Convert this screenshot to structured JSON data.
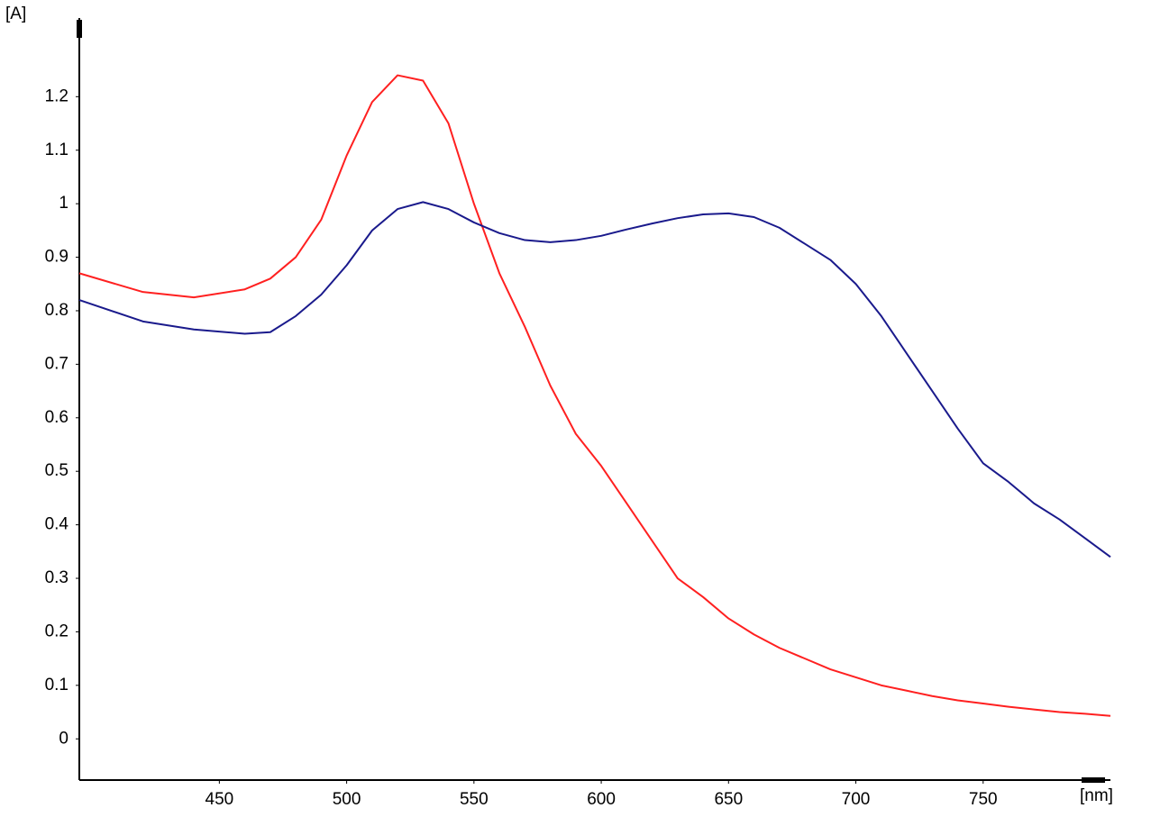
{
  "chart_data": {
    "type": "line",
    "y_label": "[A]",
    "x_label": "[nm]",
    "x": [
      395,
      420,
      440,
      460,
      470,
      480,
      490,
      500,
      510,
      520,
      530,
      540,
      550,
      560,
      570,
      580,
      590,
      600,
      610,
      620,
      630,
      640,
      650,
      660,
      670,
      680,
      690,
      700,
      710,
      720,
      730,
      740,
      750,
      760,
      770,
      780,
      790,
      800
    ],
    "series": [
      {
        "color": "#ff2020",
        "values": [
          0.87,
          0.835,
          0.825,
          0.84,
          0.86,
          0.9,
          0.97,
          1.09,
          1.19,
          1.24,
          1.23,
          1.15,
          1.0,
          0.87,
          0.77,
          0.66,
          0.57,
          0.51,
          0.44,
          0.37,
          0.3,
          0.265,
          0.225,
          0.195,
          0.17,
          0.15,
          0.13,
          0.115,
          0.1,
          0.09,
          0.08,
          0.072,
          0.066,
          0.06,
          0.055,
          0.05,
          0.047,
          0.043
        ]
      },
      {
        "color": "#1a1a8c",
        "values": [
          0.82,
          0.78,
          0.765,
          0.757,
          0.76,
          0.79,
          0.83,
          0.885,
          0.95,
          0.99,
          1.003,
          0.99,
          0.965,
          0.945,
          0.932,
          0.928,
          0.932,
          0.94,
          0.952,
          0.963,
          0.973,
          0.98,
          0.982,
          0.975,
          0.955,
          0.925,
          0.895,
          0.85,
          0.79,
          0.72,
          0.65,
          0.58,
          0.515,
          0.48,
          0.44,
          0.41,
          0.375,
          0.34
        ]
      }
    ],
    "xlim": [
      395,
      800
    ],
    "ylim": [
      -0.077,
      1.347
    ],
    "xticks": [
      450,
      500,
      550,
      600,
      650,
      700,
      750
    ],
    "yticks": [
      0,
      0.1,
      0.2,
      0.3,
      0.4,
      0.5,
      0.6,
      0.7,
      0.8,
      0.9,
      1,
      1.1,
      1.2
    ],
    "grid": false
  }
}
